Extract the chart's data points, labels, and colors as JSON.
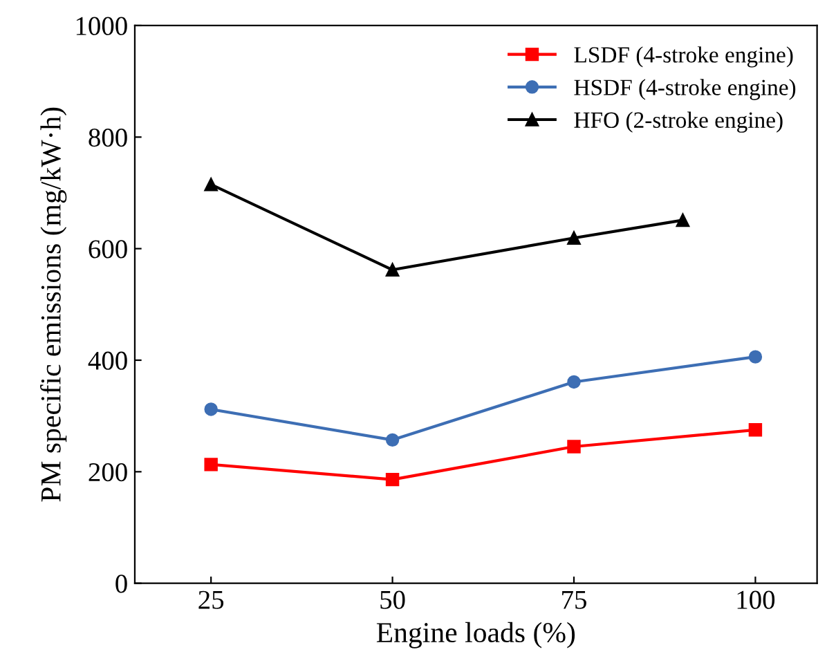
{
  "chart_data": {
    "type": "line",
    "xlabel": "Engine loads (%)",
    "ylabel": "PM specific emissions (mg/kW·h)",
    "xlim": [
      14.5,
      108.5
    ],
    "xticks": [
      25,
      50,
      75,
      100
    ],
    "ylim": [
      0,
      1000
    ],
    "yticks": [
      0,
      200,
      400,
      600,
      800,
      1000
    ],
    "grid": false,
    "legend": "top right",
    "series": [
      {
        "name": "LSDF (4-stroke engine)",
        "color": "#ff0000",
        "marker": "square",
        "x": [
          25,
          50,
          75,
          100
        ],
        "values": [
          213,
          186,
          245,
          275
        ]
      },
      {
        "name": "HSDF (4-stroke engine)",
        "color": "#3d6eb4",
        "marker": "circle",
        "x": [
          25,
          50,
          75,
          100
        ],
        "values": [
          312,
          257,
          361,
          406
        ]
      },
      {
        "name": "HFO (2-stroke engine)",
        "color": "#000000",
        "marker": "triangle",
        "x": [
          25,
          50,
          75,
          90
        ],
        "values": [
          715,
          562,
          619,
          651
        ]
      }
    ]
  }
}
